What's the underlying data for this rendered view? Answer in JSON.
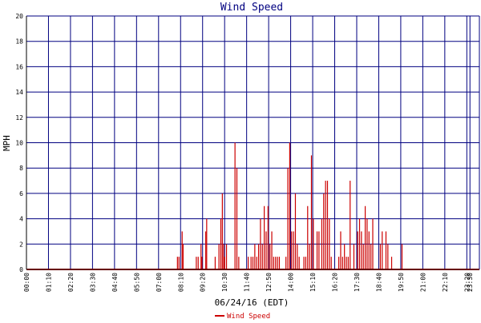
{
  "chart_data": {
    "type": "bar",
    "title": "Wind Speed",
    "xlabel": "06/24/16 (EDT)",
    "ylabel": "MPH",
    "ylim": [
      0,
      20
    ],
    "yticks": [
      0,
      2,
      4,
      6,
      8,
      10,
      12,
      14,
      16,
      18,
      20
    ],
    "xlim": [
      0,
      24
    ],
    "xticks": [
      {
        "x": 0.0,
        "label": "00:00"
      },
      {
        "x": 1.1667,
        "label": "01:10"
      },
      {
        "x": 2.3333,
        "label": "02:20"
      },
      {
        "x": 3.5,
        "label": "03:30"
      },
      {
        "x": 4.6667,
        "label": "04:40"
      },
      {
        "x": 5.8333,
        "label": "05:50"
      },
      {
        "x": 7.0,
        "label": "07:00"
      },
      {
        "x": 8.1667,
        "label": "08:10"
      },
      {
        "x": 9.3333,
        "label": "09:20"
      },
      {
        "x": 10.5,
        "label": "10:30"
      },
      {
        "x": 11.6667,
        "label": "11:40"
      },
      {
        "x": 12.8333,
        "label": "12:50"
      },
      {
        "x": 14.0,
        "label": "14:00"
      },
      {
        "x": 15.1667,
        "label": "15:10"
      },
      {
        "x": 16.3333,
        "label": "16:20"
      },
      {
        "x": 17.5,
        "label": "17:30"
      },
      {
        "x": 18.6667,
        "label": "18:40"
      },
      {
        "x": 19.8333,
        "label": "19:50"
      },
      {
        "x": 21.0,
        "label": "21:00"
      },
      {
        "x": 22.1667,
        "label": "22:10"
      },
      {
        "x": 23.3333,
        "label": "23:20"
      },
      {
        "x": 23.5,
        "label": "23:30"
      }
    ],
    "grid": true,
    "legend": {
      "position": "bottom-center"
    },
    "colors": {
      "series": "#cc0000",
      "grid": "#000080",
      "axis": "#000000",
      "title": "#000080"
    },
    "series": [
      {
        "name": "Wind Speed",
        "points": [
          [
            8.0,
            1
          ],
          [
            8.08,
            1
          ],
          [
            8.25,
            3
          ],
          [
            8.3,
            2
          ],
          [
            9.0,
            1
          ],
          [
            9.1,
            1
          ],
          [
            9.25,
            2
          ],
          [
            9.3,
            1
          ],
          [
            9.5,
            3
          ],
          [
            9.55,
            4
          ],
          [
            10.0,
            1
          ],
          [
            10.2,
            2
          ],
          [
            10.3,
            4
          ],
          [
            10.38,
            6
          ],
          [
            10.45,
            2
          ],
          [
            10.5,
            1
          ],
          [
            10.6,
            2
          ],
          [
            11.05,
            10
          ],
          [
            11.15,
            8
          ],
          [
            11.25,
            1
          ],
          [
            11.75,
            1
          ],
          [
            11.9,
            1
          ],
          [
            12.0,
            1
          ],
          [
            12.1,
            2
          ],
          [
            12.2,
            1
          ],
          [
            12.3,
            2
          ],
          [
            12.4,
            4
          ],
          [
            12.5,
            2
          ],
          [
            12.6,
            5
          ],
          [
            12.7,
            3
          ],
          [
            12.8,
            5
          ],
          [
            12.9,
            2
          ],
          [
            13.0,
            3
          ],
          [
            13.1,
            1
          ],
          [
            13.2,
            1
          ],
          [
            13.3,
            1
          ],
          [
            13.4,
            1
          ],
          [
            13.75,
            1
          ],
          [
            13.85,
            8
          ],
          [
            13.95,
            10
          ],
          [
            14.05,
            3
          ],
          [
            14.15,
            3
          ],
          [
            14.25,
            6
          ],
          [
            14.35,
            2
          ],
          [
            14.45,
            1
          ],
          [
            14.7,
            1
          ],
          [
            14.8,
            1
          ],
          [
            14.9,
            5
          ],
          [
            15.0,
            2
          ],
          [
            15.1,
            9
          ],
          [
            15.2,
            4
          ],
          [
            15.4,
            3
          ],
          [
            15.5,
            3
          ],
          [
            15.65,
            4
          ],
          [
            15.75,
            6
          ],
          [
            15.85,
            7
          ],
          [
            15.95,
            7
          ],
          [
            16.05,
            4
          ],
          [
            16.15,
            1
          ],
          [
            16.55,
            1
          ],
          [
            16.65,
            3
          ],
          [
            16.75,
            1
          ],
          [
            16.85,
            2
          ],
          [
            16.95,
            1
          ],
          [
            17.05,
            1
          ],
          [
            17.15,
            7
          ],
          [
            17.35,
            2
          ],
          [
            17.55,
            3
          ],
          [
            17.65,
            4
          ],
          [
            17.75,
            3
          ],
          [
            17.85,
            2
          ],
          [
            17.95,
            5
          ],
          [
            18.05,
            4
          ],
          [
            18.15,
            3
          ],
          [
            18.25,
            2
          ],
          [
            18.35,
            4
          ],
          [
            18.75,
            2
          ],
          [
            18.85,
            3
          ],
          [
            19.05,
            3
          ],
          [
            19.15,
            2
          ],
          [
            19.35,
            1
          ],
          [
            19.9,
            2
          ]
        ]
      }
    ]
  }
}
